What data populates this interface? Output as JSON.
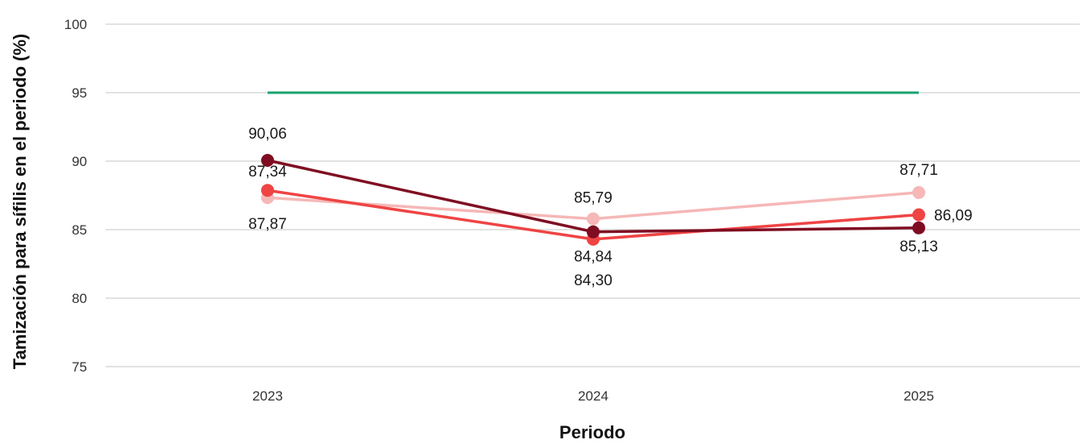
{
  "chart_data": {
    "type": "line",
    "title": "",
    "xlabel": "Periodo",
    "ylabel": "Tamización para sífilis en el periodo (%)",
    "categories": [
      "2023",
      "2024",
      "2025"
    ],
    "ylim": [
      75,
      100
    ],
    "yticks": [
      75,
      80,
      85,
      90,
      95,
      100
    ],
    "grid": true,
    "legend": "none",
    "reference_line": {
      "value": 95,
      "color": "#1aa36f"
    },
    "series": [
      {
        "values": [
          87.34,
          85.79,
          87.71
        ],
        "labels": [
          "87,34",
          "85,79",
          "87,71"
        ],
        "color": "#f6b7b7"
      },
      {
        "values": [
          87.87,
          84.3,
          86.09
        ],
        "labels": [
          "87,87",
          "84,30",
          "86,09"
        ],
        "color": "#ef4444"
      },
      {
        "values": [
          90.06,
          84.84,
          85.13
        ],
        "labels": [
          "90,06",
          "84,84",
          "85,13"
        ],
        "color": "#7f0d22"
      }
    ]
  }
}
